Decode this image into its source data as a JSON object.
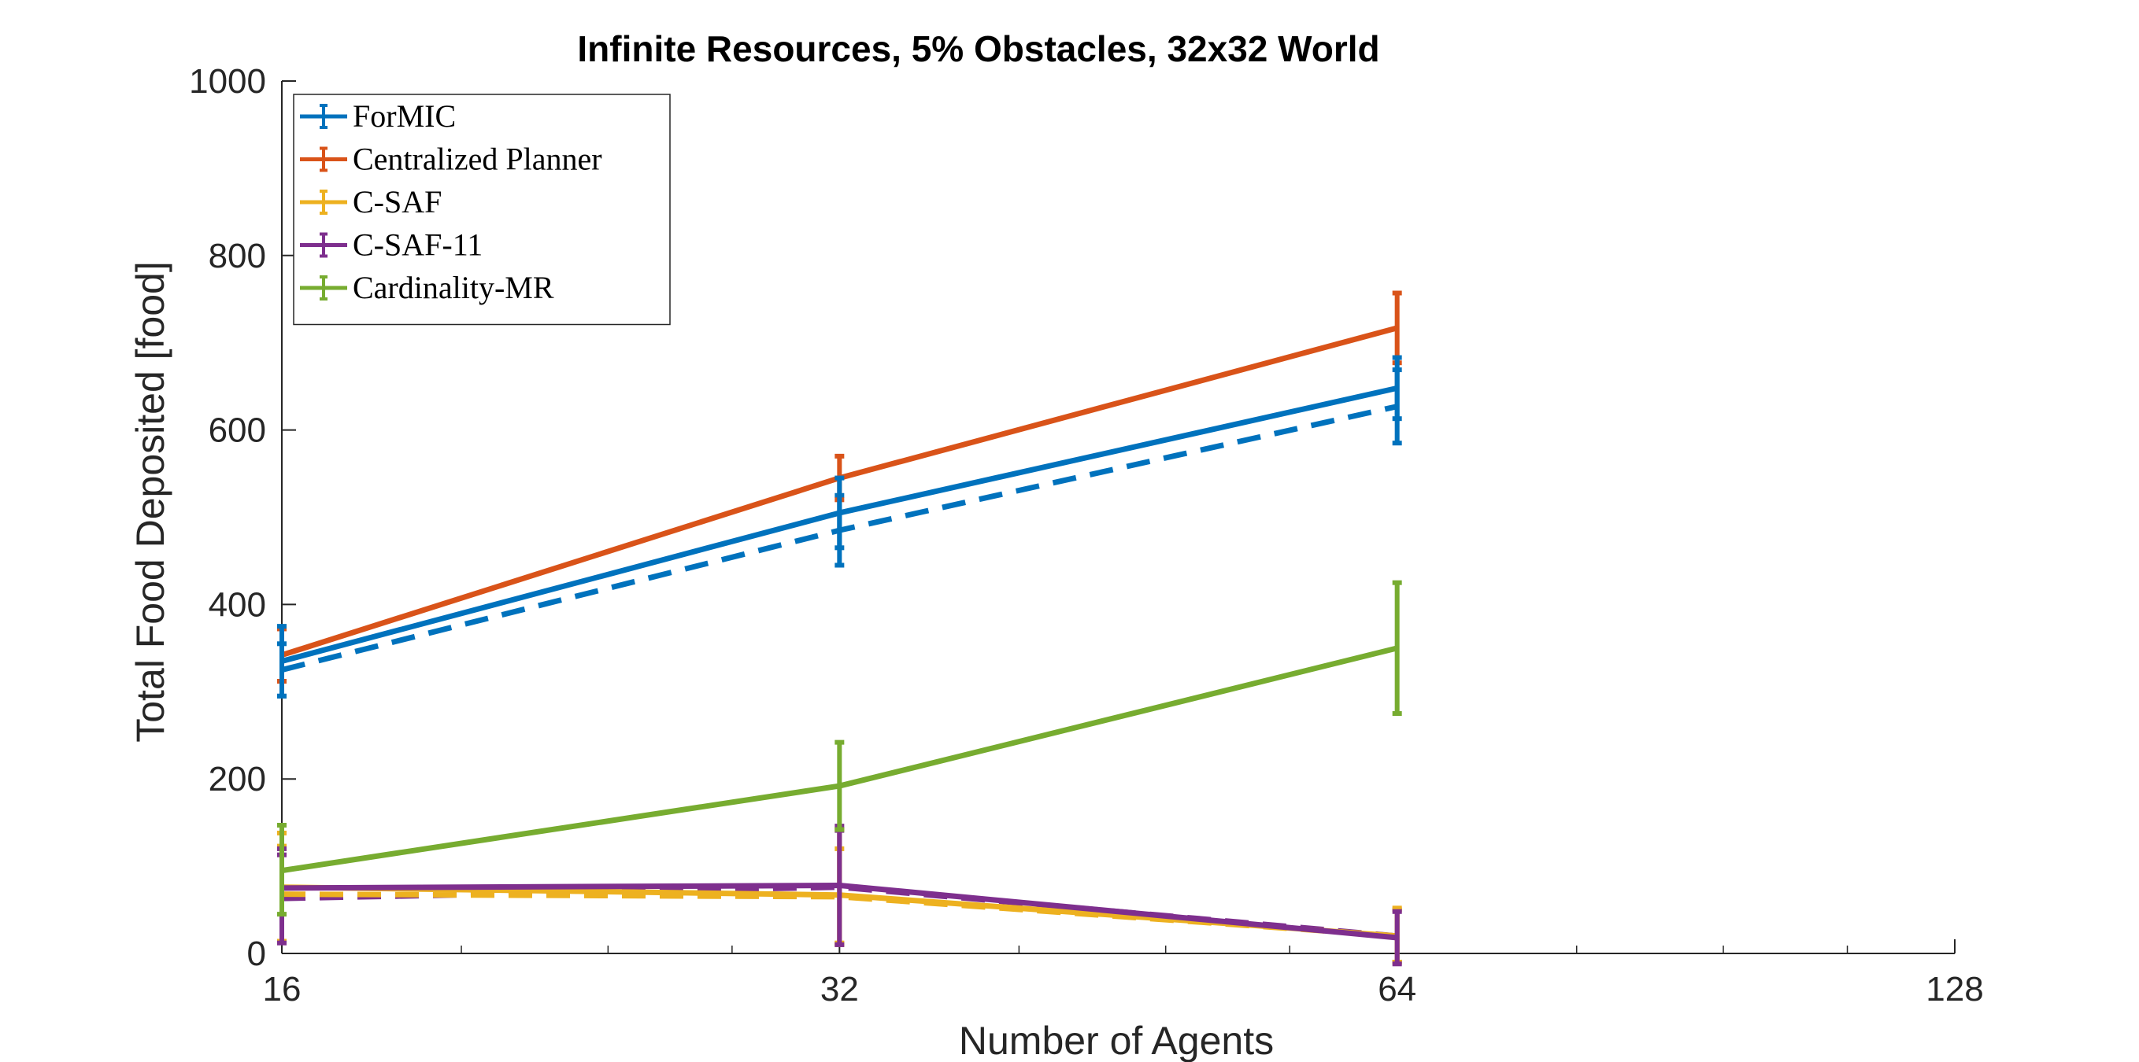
{
  "chart_data": {
    "type": "line",
    "title": "Infinite Resources, 5% Obstacles, 32x32 World",
    "xlabel": "Number of Agents",
    "ylabel": "Total Food Deposited [food]",
    "x_scale": "log2",
    "xlim": [
      16,
      128
    ],
    "ylim": [
      0,
      1000
    ],
    "x": [
      16,
      32,
      64
    ],
    "xticks": [
      16,
      32,
      64,
      128
    ],
    "xtick_labels": [
      "16",
      "32",
      "64",
      "128"
    ],
    "yticks": [
      0,
      200,
      400,
      600,
      800,
      1000
    ],
    "ytick_labels": [
      "0",
      "200",
      "400",
      "600",
      "800",
      "1000"
    ],
    "grid": false,
    "legend_position": "top-left",
    "series": [
      {
        "name": "ForMIC",
        "color": "#0072BD",
        "style": "solid",
        "in_legend": true,
        "values": [
          335,
          505,
          648
        ],
        "err_low": [
          40,
          40,
          35
        ],
        "err_high": [
          40,
          40,
          35
        ]
      },
      {
        "name": "Centralized Planner",
        "color": "#D95319",
        "style": "solid",
        "in_legend": true,
        "values": [
          342,
          545,
          717
        ],
        "err_low": [
          30,
          25,
          40
        ],
        "err_high": [
          30,
          25,
          40
        ]
      },
      {
        "name": "C-SAF",
        "color": "#EDB120",
        "style": "solid",
        "in_legend": true,
        "values": [
          76,
          67,
          20
        ],
        "err_low": [
          62,
          55,
          30
        ],
        "err_high": [
          62,
          75,
          32
        ]
      },
      {
        "name": "C-SAF-11",
        "color": "#7E2F8E",
        "style": "solid",
        "in_legend": true,
        "values": [
          75,
          78,
          18
        ],
        "err_low": [
          63,
          68,
          30
        ],
        "err_high": [
          45,
          68,
          30
        ]
      },
      {
        "name": "Cardinality-MR",
        "color": "#77AC30",
        "style": "solid",
        "in_legend": true,
        "values": [
          95,
          192,
          350
        ],
        "err_low": [
          50,
          50,
          75
        ],
        "err_high": [
          52,
          50,
          75
        ]
      },
      {
        "name": "",
        "color": "#0072BD",
        "style": "dashed",
        "in_legend": false,
        "values": [
          325,
          485,
          627
        ],
        "err_low": [
          30,
          40,
          42
        ],
        "err_high": [
          30,
          40,
          42
        ]
      },
      {
        "name": "",
        "color": "#7E2F8E",
        "style": "dashed",
        "in_legend": false,
        "values": [
          63,
          76,
          20
        ],
        "err_low": [
          50,
          65,
          30
        ],
        "err_high": [
          50,
          65,
          30
        ]
      },
      {
        "name": "",
        "color": "#EDB120",
        "style": "dashed",
        "in_legend": false,
        "values": [
          68,
          65,
          20
        ],
        "err_low": [
          55,
          55,
          30
        ],
        "err_high": [
          55,
          55,
          30
        ]
      }
    ]
  }
}
